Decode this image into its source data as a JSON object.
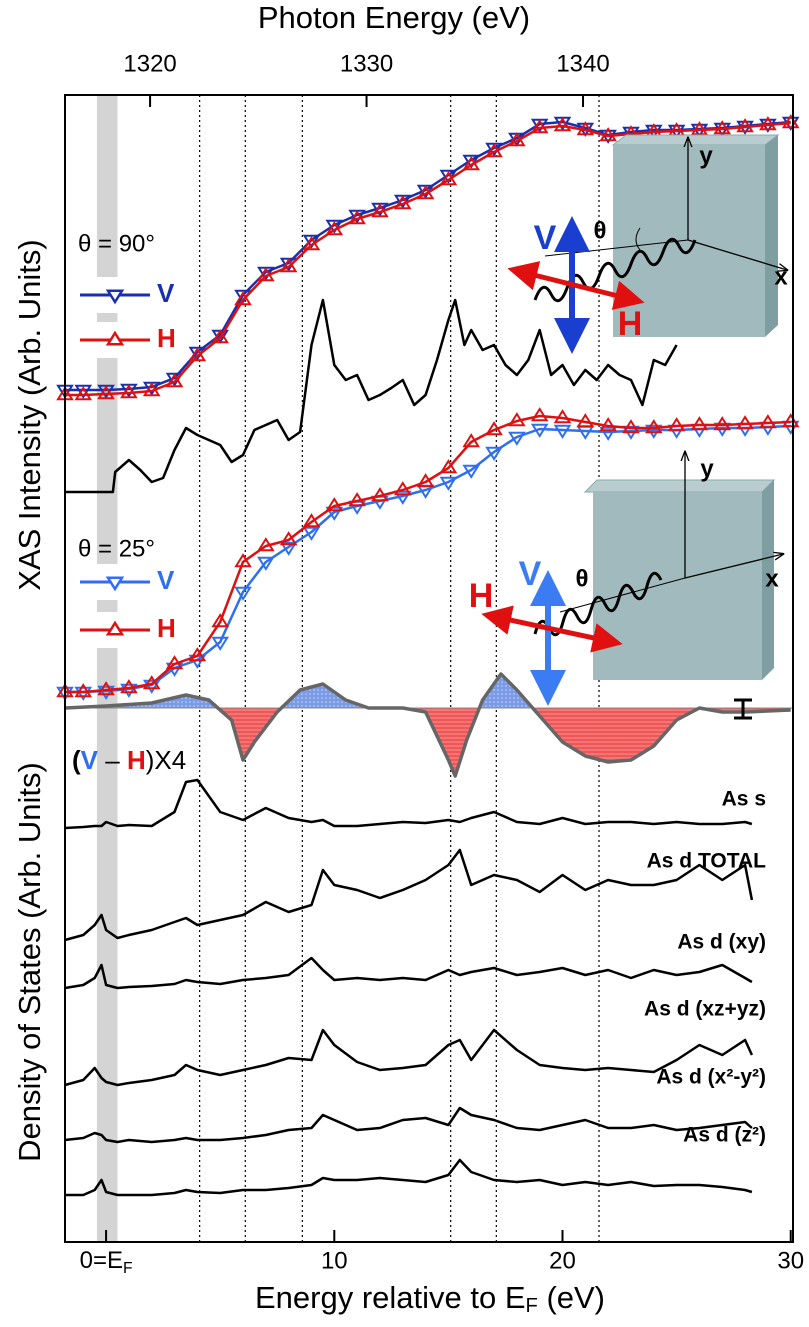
{
  "chart_data": {
    "type": "line",
    "top_axis": {
      "label": "Photon Energy (eV)",
      "xlim": [
        1316.07,
        1349.7
      ],
      "xticks": [
        1320,
        1330,
        1340
      ]
    },
    "xlabel": "Energy relative to EF (eV)",
    "xlim": [
      -1.8,
      30.1
    ],
    "xticks": [
      {
        "value": 0,
        "label": "0=EF"
      },
      10,
      20,
      30
    ],
    "ylabel_top": "XAS Intensity (Arb. Units)",
    "ylabel_bottom": "Density of States (Arb. Units)",
    "ylim": [
      0,
      1147
    ],
    "vlines": [
      4.1,
      6.1,
      8.6,
      15.1,
      17.1,
      21.6
    ],
    "ef_band": [
      -0.4,
      0.5
    ],
    "legends": [
      {
        "title": "θ = 90°",
        "series": [
          0,
          1
        ]
      },
      {
        "title": "θ = 25°",
        "series": [
          3,
          4
        ]
      }
    ],
    "diff_label": [
      "(",
      "V",
      " – ",
      "H",
      ")X4"
    ],
    "diff_baseline": 534,
    "insets": [
      {
        "V": "V",
        "H": "H",
        "theta": "θ",
        "x": "x",
        "y": "y"
      },
      {
        "V": "V",
        "H": "H",
        "theta": "θ",
        "x": "x",
        "y": "y"
      }
    ],
    "series": [
      {
        "name": "V",
        "color": "#1a2fb0",
        "marker": "triangle-down",
        "x": [
          -1.8,
          -1,
          0,
          1,
          2,
          3,
          4,
          5,
          6,
          7,
          8,
          9,
          10,
          11,
          12,
          13,
          14,
          15,
          16,
          17,
          18,
          19,
          20,
          21,
          22,
          23,
          24,
          25,
          26,
          27,
          28,
          29,
          30
        ],
        "values": [
          852,
          852,
          852,
          853,
          855,
          864,
          890,
          907,
          947,
          970,
          979,
          1002,
          1017,
          1027,
          1034,
          1042,
          1052,
          1067,
          1082,
          1094,
          1104,
          1118,
          1120,
          1114,
          1107,
          1110,
          1112,
          1112,
          1113,
          1114,
          1116,
          1118,
          1120
        ]
      },
      {
        "name": "H",
        "color": "#e01010",
        "marker": "triangle-up",
        "x": [
          -1.8,
          -1,
          0,
          1,
          2,
          3,
          4,
          5,
          6,
          7,
          8,
          9,
          10,
          11,
          12,
          13,
          14,
          15,
          16,
          17,
          18,
          19,
          20,
          21,
          22,
          23,
          24,
          25,
          26,
          27,
          28,
          29,
          30
        ],
        "values": [
          847,
          847,
          848,
          849,
          851,
          860,
          886,
          904,
          942,
          966,
          975,
          997,
          1012,
          1023,
          1030,
          1038,
          1048,
          1062,
          1077,
          1090,
          1101,
          1114,
          1116,
          1112,
          1106,
          1108,
          1110,
          1111,
          1112,
          1113,
          1115,
          1117,
          1119
        ]
      },
      {
        "color": "#000000",
        "x": [
          -1.8,
          0.3,
          0.4,
          1,
          1.5,
          2,
          2.5,
          3,
          3.5,
          4,
          4.5,
          5,
          5.5,
          6,
          6.5,
          7,
          7.5,
          8,
          8.5,
          9,
          9.5,
          10,
          10.5,
          11,
          11.5,
          12,
          12.5,
          13,
          13.5,
          14,
          14.5,
          15,
          15.3,
          15.7,
          16,
          16.5,
          17,
          17.5,
          18,
          18.5,
          19,
          19.5,
          20,
          20.5,
          21,
          21.5,
          22,
          22.5,
          23,
          23.5,
          24,
          24.5,
          25
        ],
        "values": [
          750,
          750,
          770,
          782,
          772,
          760,
          764,
          792,
          814,
          807,
          802,
          797,
          780,
          787,
          812,
          817,
          822,
          802,
          810,
          897,
          942,
          877,
          862,
          867,
          842,
          847,
          854,
          862,
          837,
          847,
          882,
          922,
          942,
          897,
          912,
          892,
          897,
          877,
          867,
          882,
          912,
          867,
          877,
          857,
          872,
          862,
          877,
          867,
          862,
          837,
          882,
          877,
          897
        ]
      },
      {
        "name": "V",
        "color": "#2e6ff0",
        "marker": "triangle-down",
        "x": [
          -1.8,
          -1,
          0,
          1,
          2,
          3,
          4,
          5,
          6,
          7,
          8,
          9,
          10,
          11,
          12,
          13,
          14,
          15,
          16,
          17,
          18,
          19,
          20,
          21,
          22,
          23,
          24,
          25,
          26,
          27,
          28,
          29,
          30
        ],
        "values": [
          550,
          550,
          551,
          553,
          557,
          574,
          582,
          600,
          650,
          680,
          695,
          710,
          730,
          736,
          741,
          746,
          752,
          760,
          772,
          790,
          805,
          813,
          812,
          811,
          810,
          811,
          812,
          812,
          813,
          814,
          814,
          815,
          816
        ]
      },
      {
        "name": "H",
        "color": "#e01010",
        "marker": "triangle-up",
        "x": [
          -1.8,
          -1,
          0,
          1,
          2,
          3,
          4,
          5,
          6,
          7,
          8,
          9,
          10,
          11,
          12,
          13,
          14,
          15,
          16,
          17,
          18,
          19,
          20,
          21,
          22,
          23,
          24,
          25,
          26,
          27,
          28,
          29,
          30
        ],
        "values": [
          550,
          550,
          552,
          554,
          558,
          578,
          586,
          620,
          680,
          696,
          702,
          720,
          736,
          741,
          746,
          752,
          760,
          774,
          800,
          812,
          821,
          826,
          824,
          820,
          816,
          814,
          814,
          816,
          817,
          817,
          818,
          819,
          820
        ]
      },
      {
        "color": "#666666",
        "fill": "diff",
        "x": [
          -1.8,
          0,
          2,
          3.5,
          4.5,
          5.5,
          6,
          6.5,
          7.5,
          8.5,
          9.5,
          10.5,
          11.5,
          13,
          14,
          15,
          15.3,
          15.8,
          16.5,
          17.3,
          18,
          19,
          20,
          21,
          22,
          23,
          24,
          25,
          26,
          27,
          28,
          30
        ],
        "values": [
          534,
          536,
          539,
          547,
          542,
          522,
          482,
          500,
          530,
          552,
          558,
          542,
          534,
          534,
          530,
          482,
          466,
          502,
          542,
          568,
          552,
          526,
          500,
          486,
          480,
          482,
          496,
          522,
          534,
          530,
          530,
          532
        ]
      },
      {
        "name": "As s",
        "color": "#000000",
        "x": [
          -1.8,
          -1,
          -0.5,
          -0.2,
          0,
          0.5,
          1,
          2,
          3,
          3.5,
          4,
          5,
          6,
          7,
          8,
          9,
          9.5,
          10,
          11,
          12,
          13,
          14,
          15,
          15.5,
          16,
          17,
          18,
          19,
          20,
          21,
          22,
          23,
          24,
          25,
          26,
          27,
          28,
          28.3
        ],
        "values": [
          414,
          415,
          416,
          416,
          420,
          416,
          417,
          416,
          430,
          460,
          462,
          430,
          422,
          434,
          424,
          420,
          422,
          416,
          416,
          418,
          420,
          419,
          422,
          420,
          424,
          430,
          420,
          418,
          424,
          418,
          420,
          420,
          418,
          420,
          418,
          418,
          420,
          418
        ]
      },
      {
        "name": "As d TOTAL",
        "color": "#000000",
        "x": [
          -1.8,
          -1,
          -0.5,
          -0.2,
          0,
          0.5,
          1,
          2,
          3,
          3.5,
          4,
          5,
          6,
          7,
          8,
          9,
          9.5,
          10,
          11,
          12,
          13,
          14,
          15,
          15.5,
          16,
          17,
          18,
          19,
          20,
          21,
          22,
          23,
          24,
          25,
          26,
          27,
          28,
          28.3
        ],
        "values": [
          302,
          307,
          317,
          327,
          312,
          304,
          307,
          312,
          320,
          324,
          317,
          322,
          327,
          340,
          330,
          337,
          372,
          357,
          352,
          344,
          352,
          362,
          377,
          392,
          357,
          367,
          362,
          350,
          367,
          352,
          362,
          357,
          357,
          362,
          377,
          362,
          377,
          342
        ]
      },
      {
        "name": "As d (xy)",
        "color": "#000000",
        "x": [
          -1.8,
          -1,
          -0.5,
          -0.2,
          0,
          0.5,
          1,
          2,
          3,
          3.5,
          4,
          5,
          6,
          7,
          8,
          9,
          9.5,
          10,
          11,
          12,
          13,
          14,
          15,
          15.5,
          16,
          17,
          18,
          19,
          20,
          21,
          22,
          23,
          24,
          25,
          26,
          27,
          28,
          28.3
        ],
        "values": [
          254,
          257,
          264,
          277,
          257,
          254,
          255,
          256,
          258,
          262,
          260,
          258,
          262,
          264,
          267,
          284,
          272,
          262,
          264,
          262,
          264,
          262,
          272,
          267,
          270,
          274,
          267,
          270,
          274,
          267,
          272,
          264,
          272,
          267,
          270,
          277,
          264,
          260
        ]
      },
      {
        "name": "As d (xz+yz)",
        "color": "#000000",
        "x": [
          -1.8,
          -1,
          -0.5,
          -0.2,
          0,
          0.5,
          1,
          2,
          3,
          3.5,
          4,
          5,
          6,
          7,
          8,
          9,
          9.5,
          10,
          11,
          12,
          13,
          14,
          15,
          15.5,
          16,
          17,
          18,
          19,
          20,
          21,
          22,
          23,
          24,
          25,
          26,
          27,
          28,
          28.3
        ],
        "values": [
          157,
          162,
          174,
          164,
          160,
          157,
          159,
          162,
          167,
          177,
          172,
          167,
          172,
          177,
          184,
          182,
          212,
          197,
          180,
          172,
          174,
          177,
          197,
          202,
          182,
          212,
          192,
          177,
          174,
          172,
          174,
          172,
          170,
          182,
          197,
          187,
          202,
          187
        ]
      },
      {
        "name": "As d (x²-y²)",
        "color": "#000000",
        "x": [
          -1.8,
          -1,
          -0.5,
          -0.2,
          0,
          0.5,
          1,
          2,
          3,
          3.5,
          4,
          5,
          6,
          7,
          8,
          9,
          9.5,
          10,
          11,
          12,
          13,
          14,
          15,
          15.5,
          16,
          17,
          18,
          19,
          20,
          21,
          22,
          23,
          24,
          25,
          26,
          27,
          28,
          28.3
        ],
        "values": [
          102,
          104,
          109,
          107,
          102,
          100,
          102,
          100,
          102,
          104,
          102,
          102,
          104,
          107,
          112,
          114,
          127,
          122,
          112,
          114,
          122,
          124,
          117,
          134,
          127,
          122,
          114,
          112,
          117,
          122,
          114,
          114,
          117,
          112,
          114,
          117,
          120,
          114
        ]
      },
      {
        "name": "As d (z²)",
        "color": "#000000",
        "x": [
          -1.8,
          -1,
          -0.5,
          -0.2,
          0,
          0.5,
          1,
          2,
          3,
          3.5,
          4,
          5,
          6,
          7,
          8,
          9,
          9.5,
          10,
          11,
          12,
          13,
          14,
          15,
          15.5,
          16,
          17,
          18,
          19,
          20,
          21,
          22,
          23,
          24,
          25,
          26,
          27,
          28,
          28.3
        ],
        "values": [
          47,
          47,
          52,
          62,
          50,
          47,
          47,
          47,
          49,
          52,
          50,
          49,
          52,
          52,
          54,
          57,
          64,
          62,
          62,
          64,
          62,
          60,
          67,
          82,
          70,
          62,
          60,
          62,
          57,
          60,
          57,
          60,
          56,
          57,
          57,
          55,
          52,
          50
        ]
      }
    ]
  }
}
